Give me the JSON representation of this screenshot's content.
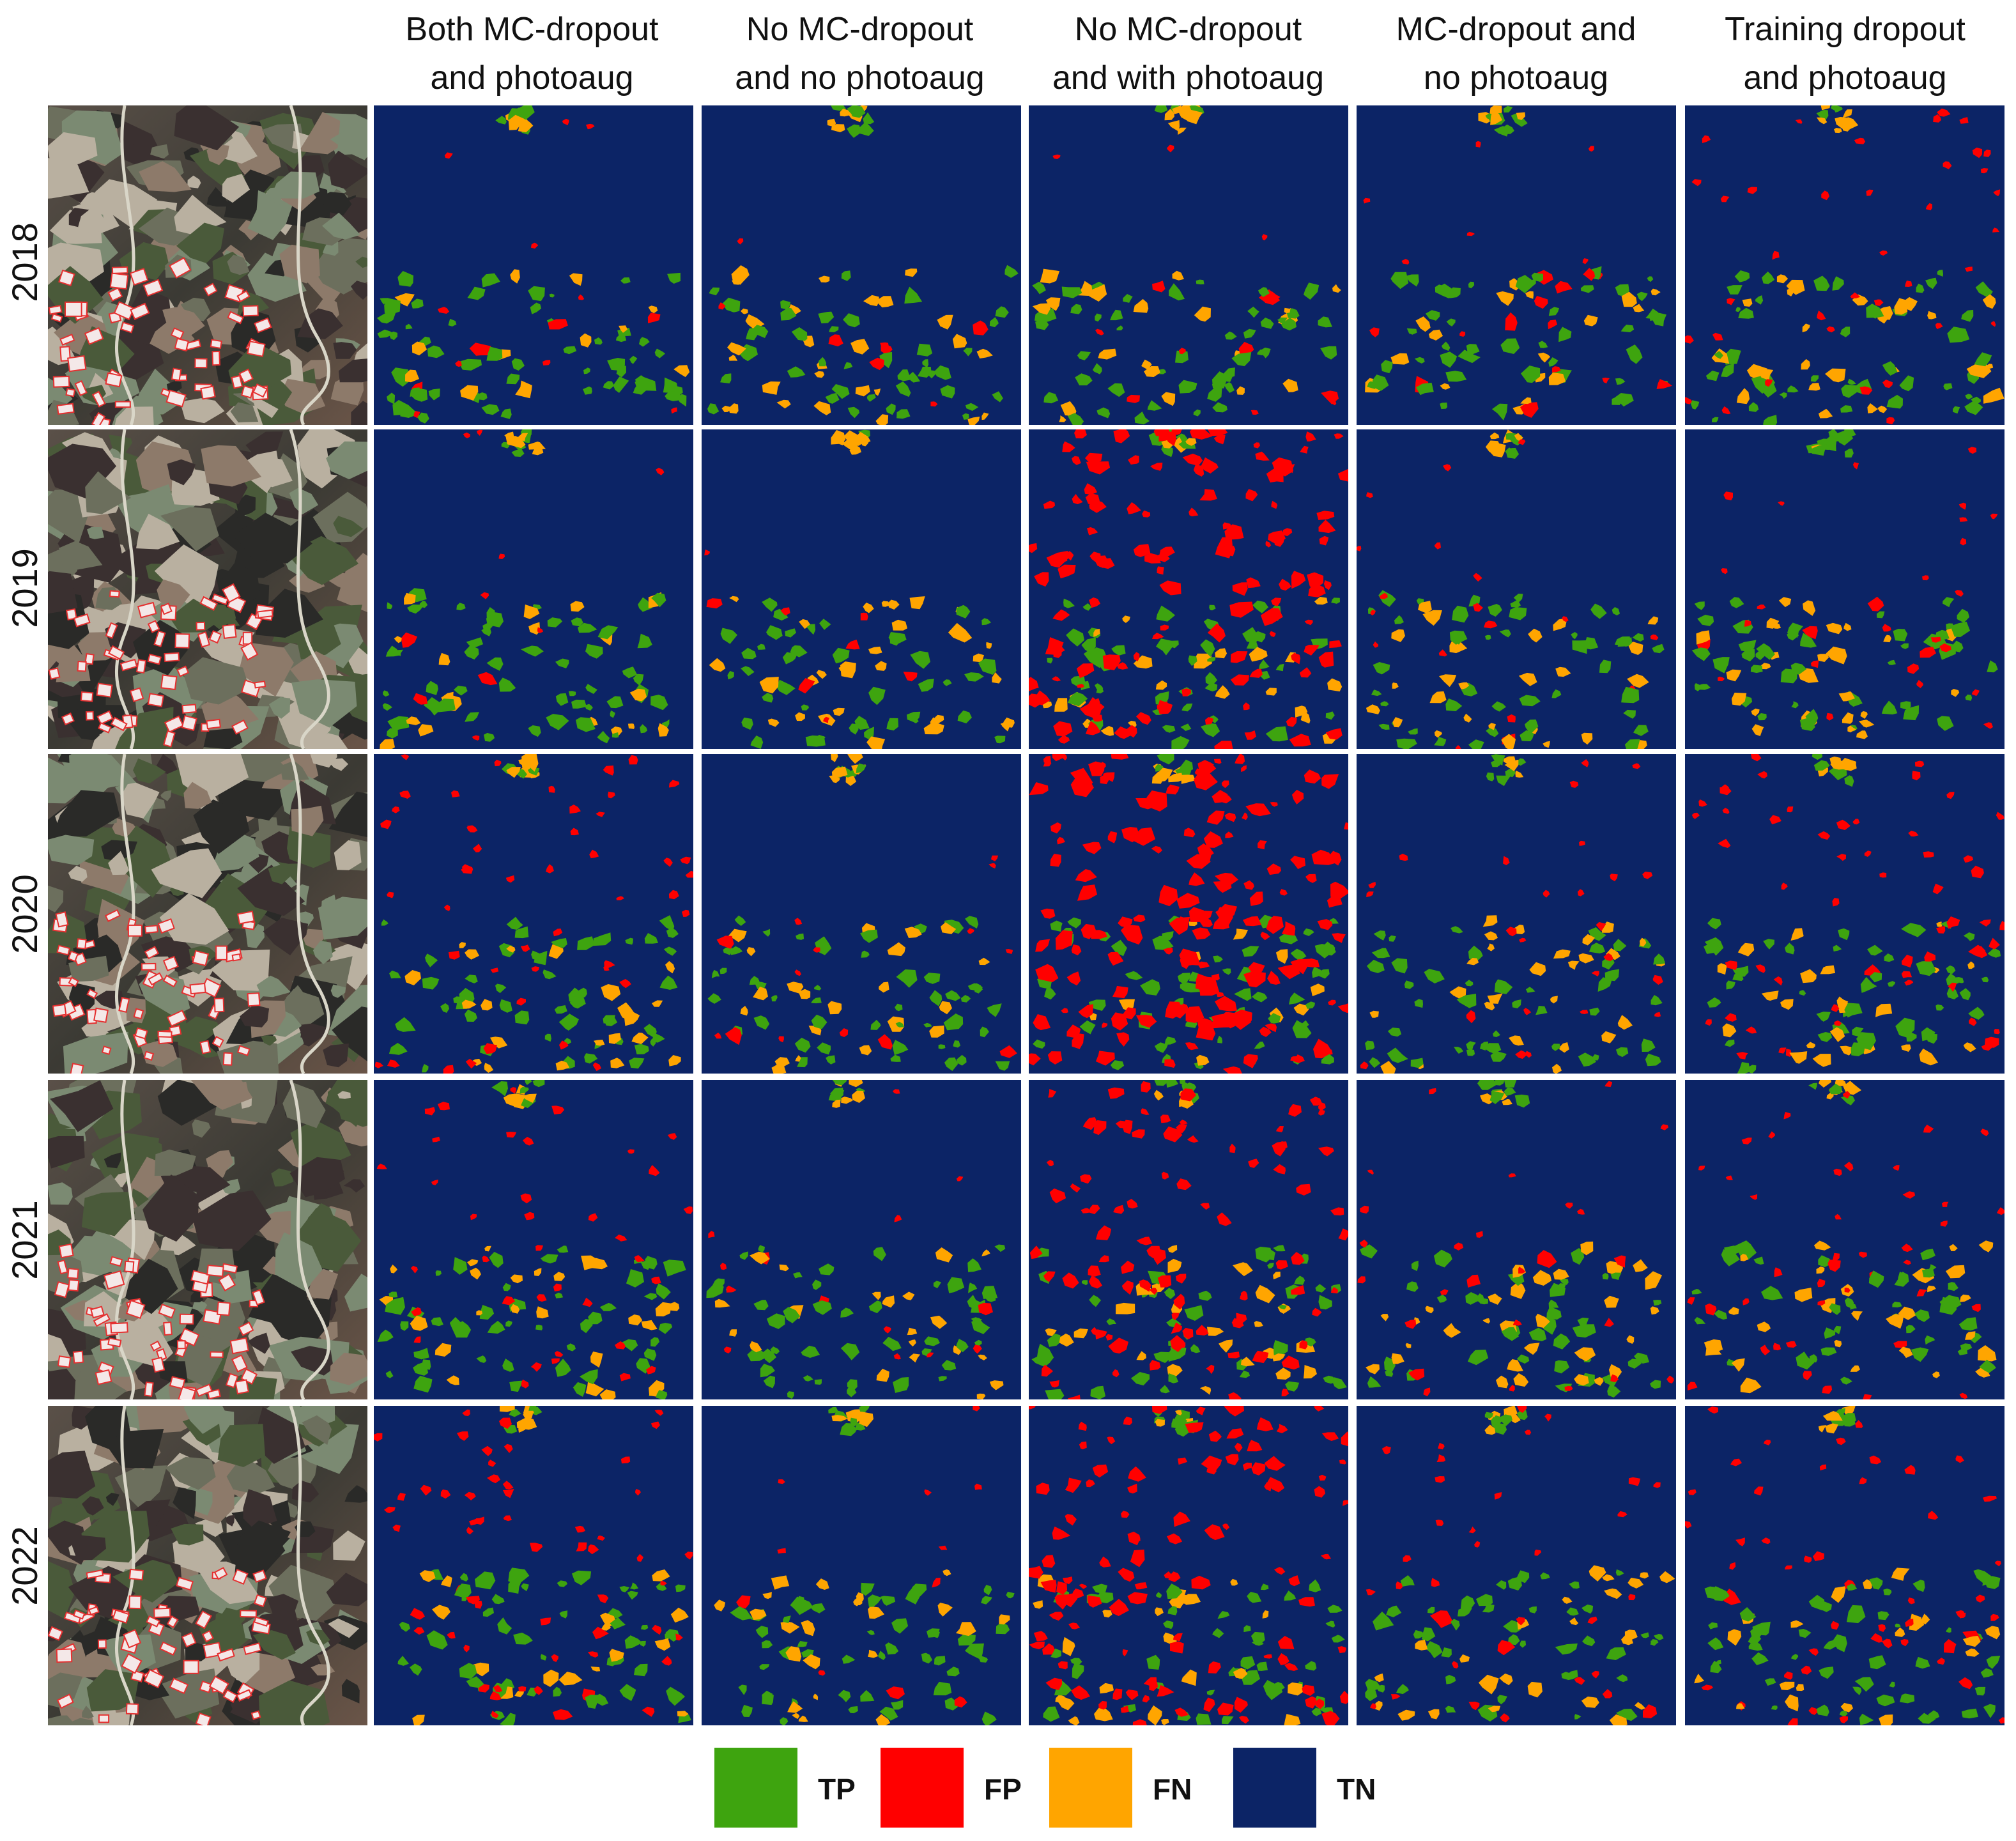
{
  "columns": [
    {
      "label_line1": "Both MC-dropout",
      "label_line2": "and photoaug"
    },
    {
      "label_line1": "No MC-dropout",
      "label_line2": "and no photoaug"
    },
    {
      "label_line1": "No MC-dropout",
      "label_line2": "and with photoaug"
    },
    {
      "label_line1": "MC-dropout and",
      "label_line2": "no photoaug"
    },
    {
      "label_line1": "Training dropout",
      "label_line2": "and photoaug"
    }
  ],
  "rows": [
    {
      "year": "2018"
    },
    {
      "year": "2019"
    },
    {
      "year": "2020"
    },
    {
      "year": "2021"
    },
    {
      "year": "2022"
    }
  ],
  "legend": [
    {
      "label": "TP",
      "color": "#3ea40f"
    },
    {
      "label": "FP",
      "color": "#ff0000"
    },
    {
      "label": "FN",
      "color": "#ffa500"
    },
    {
      "label": "TN",
      "color": "#0c2466"
    }
  ],
  "colors": {
    "tn_background": "#0c2466",
    "tp": "#3ea40f",
    "fp": "#ff0000",
    "fn": "#ffa500",
    "satellite_outline": "#e53030"
  }
}
